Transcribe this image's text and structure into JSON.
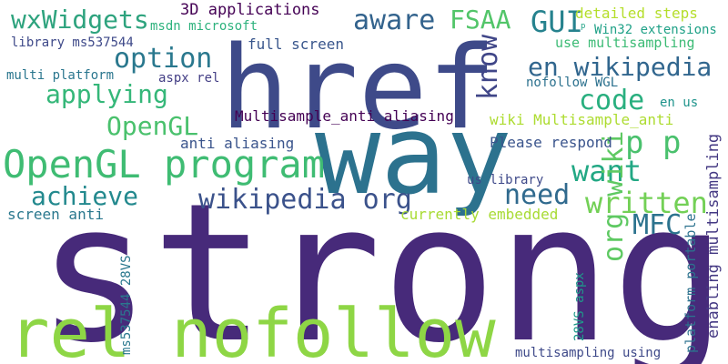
{
  "words": [
    {
      "key": "strong",
      "text": "strong",
      "color": "#472a7a",
      "rotated": false
    },
    {
      "key": "href",
      "text": "href",
      "color": "#3e4a89",
      "rotated": false
    },
    {
      "key": "way",
      "text": "way",
      "color": "#2c728e",
      "rotated": false
    },
    {
      "key": "rel_nofollow",
      "text": "rel nofollow",
      "color": "#8ed645",
      "rotated": false
    },
    {
      "key": "opengl_program",
      "text": "OpenGL program",
      "color": "#3fbc73",
      "rotated": false
    },
    {
      "key": "wxwidgets",
      "text": "wxWidgets",
      "color": "#2ea37e",
      "rotated": false
    },
    {
      "key": "option",
      "text": "option",
      "color": "#2a788e",
      "rotated": false
    },
    {
      "key": "applying",
      "text": "applying",
      "color": "#35b779",
      "rotated": false
    },
    {
      "key": "opengl",
      "text": "OpenGL",
      "color": "#4ac16d",
      "rotated": false
    },
    {
      "key": "achieve",
      "text": "achieve",
      "color": "#23898e",
      "rotated": false
    },
    {
      "key": "aware",
      "text": "aware",
      "color": "#33638d",
      "rotated": false
    },
    {
      "key": "fsaa",
      "text": "FSAA",
      "color": "#52c569",
      "rotated": false
    },
    {
      "key": "gui",
      "text": "GUI",
      "color": "#26828e",
      "rotated": false
    },
    {
      "key": "know",
      "text": "know",
      "color": "#404688",
      "rotated": true
    },
    {
      "key": "en_wikipedia",
      "text": "en wikipedia",
      "color": "#31668e",
      "rotated": false
    },
    {
      "key": "code",
      "text": "code",
      "color": "#29af7f",
      "rotated": false
    },
    {
      "key": "p_p",
      "text": "p p",
      "color": "#4ac16d",
      "rotated": false
    },
    {
      "key": "want",
      "text": "want",
      "color": "#22a884",
      "rotated": false
    },
    {
      "key": "wikipedia_org",
      "text": "wikipedia org",
      "color": "#3b528b",
      "rotated": false
    },
    {
      "key": "need",
      "text": "need",
      "color": "#306a8e",
      "rotated": false
    },
    {
      "key": "written",
      "text": "written",
      "color": "#73d056",
      "rotated": false
    },
    {
      "key": "org_wiki",
      "text": "org wiki",
      "color": "#5ec962",
      "rotated": true
    },
    {
      "key": "mfc",
      "text": "MFC",
      "color": "#2c738e",
      "rotated": false
    },
    {
      "key": "3d_applications",
      "text": "3D applications",
      "color": "#440154",
      "rotated": false
    },
    {
      "key": "msdn_microsoft",
      "text": "msdn microsoft",
      "color": "#2db27d",
      "rotated": false
    },
    {
      "key": "library_ms537544",
      "text": "library ms537544",
      "color": "#3e4989",
      "rotated": false
    },
    {
      "key": "full_screen",
      "text": "full screen",
      "color": "#39568c",
      "rotated": false
    },
    {
      "key": "detailed_steps",
      "text": "detailed steps",
      "color": "#b5de2b",
      "rotated": false
    },
    {
      "key": "win32_extensions",
      "text": "Win32 extensions",
      "color": "#1fa187",
      "rotated": false
    },
    {
      "key": "use_multisampling",
      "text": "use multisampling",
      "color": "#3cbb75",
      "rotated": false
    },
    {
      "key": "p_small",
      "text": "p",
      "color": "#20a386",
      "rotated": false
    },
    {
      "key": "multi_platform",
      "text": "multi platform",
      "color": "#2a768e",
      "rotated": false
    },
    {
      "key": "aspx_rel",
      "text": "aspx rel",
      "color": "#433e85",
      "rotated": false
    },
    {
      "key": "nofollow_wgl",
      "text": "nofollow WGL",
      "color": "#2c718e",
      "rotated": false
    },
    {
      "key": "en_us",
      "text": "en us",
      "color": "#1f948c",
      "rotated": false
    },
    {
      "key": "multisample_anti_aliasing",
      "text": "Multisample_anti aliasing",
      "color": "#440154",
      "rotated": false
    },
    {
      "key": "wiki_multisample_anti",
      "text": "wiki Multisample_anti",
      "color": "#addc30",
      "rotated": false
    },
    {
      "key": "anti_aliasing",
      "text": "anti aliasing",
      "color": "#3a548c",
      "rotated": false
    },
    {
      "key": "please_respond",
      "text": "Please respond",
      "color": "#3a548c",
      "rotated": false
    },
    {
      "key": "us_library",
      "text": "us library",
      "color": "#3e4989",
      "rotated": false
    },
    {
      "key": "screen_anti",
      "text": "screen anti",
      "color": "#2a788e",
      "rotated": false
    },
    {
      "key": "currently_embedded",
      "text": "currently embedded",
      "color": "#a8db34",
      "rotated": false
    },
    {
      "key": "ms537544_28vs",
      "text": "ms537544 28VS",
      "color": "#2a788e",
      "rotated": true
    },
    {
      "key": "28vs_aspx",
      "text": "28VS aspx",
      "color": "#1f9a8a",
      "rotated": true
    },
    {
      "key": "multisampling_using",
      "text": "multisampling using",
      "color": "#3e4989",
      "rotated": false
    },
    {
      "key": "enabling_multisampling",
      "text": "enabling multisampling",
      "color": "#443983",
      "rotated": true
    },
    {
      "key": "platform_portable",
      "text": "platform portable",
      "color": "#2c728e",
      "rotated": true
    }
  ]
}
